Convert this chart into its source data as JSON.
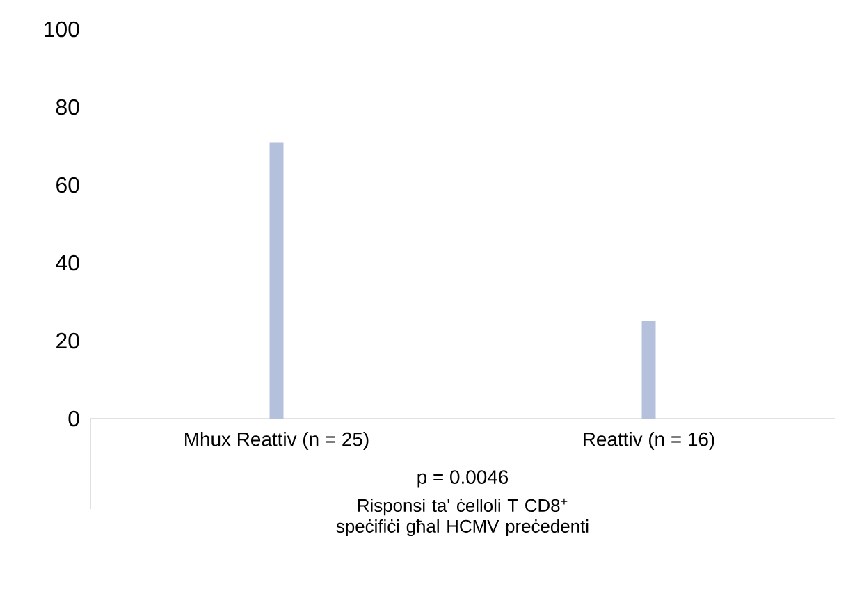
{
  "chart_data": {
    "type": "bar",
    "categories": [
      "Mhux Reattiv (n = 25)",
      "Reattiv (n = 16)"
    ],
    "values": [
      71,
      25
    ],
    "color": "#b4c0dc",
    "ylim": [
      0,
      100
    ],
    "yticks": [
      0,
      20,
      40,
      60,
      80,
      100
    ],
    "xlabel": "Risponsi ta' ċelloli T CD8$^{+}$ speċifiċi għal HCMV preċedenti",
    "annotations": [
      "p = 0.0046"
    ]
  }
}
